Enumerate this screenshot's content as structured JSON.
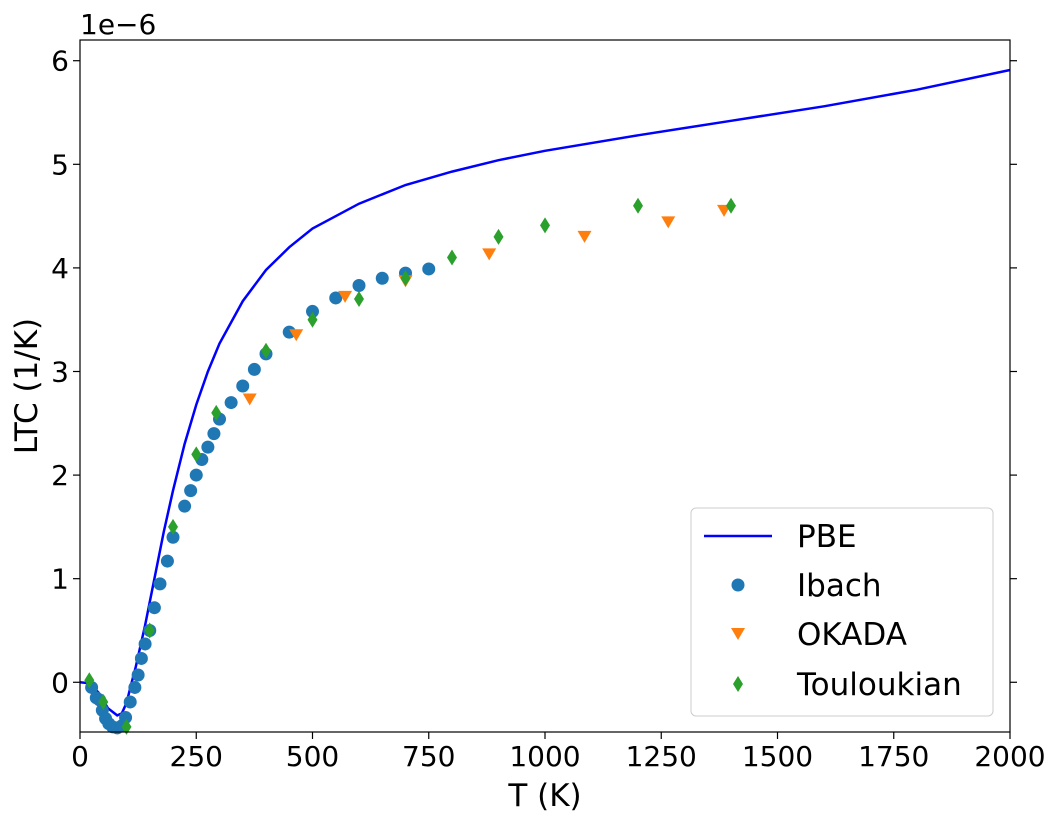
{
  "chart_data": {
    "type": "line",
    "xlabel": "T (K)",
    "ylabel": "LTC (1/K)",
    "offset_text": "1e−6",
    "xlim": [
      0,
      2000
    ],
    "ylim": [
      -0.48,
      6.2
    ],
    "xticks": [
      0,
      250,
      500,
      750,
      1000,
      1250,
      1500,
      1750,
      2000
    ],
    "yticks": [
      0,
      1,
      2,
      3,
      4,
      5,
      6
    ],
    "legend_position": "bottom-right",
    "series": [
      {
        "name": "PBE",
        "kind": "line",
        "color": "#0000ff",
        "points": [
          [
            0,
            0
          ],
          [
            20,
            -0.01
          ],
          [
            40,
            -0.1
          ],
          [
            60,
            -0.25
          ],
          [
            80,
            -0.32
          ],
          [
            90,
            -0.3
          ],
          [
            100,
            -0.2
          ],
          [
            110,
            -0.02
          ],
          [
            120,
            0.15
          ],
          [
            140,
            0.55
          ],
          [
            160,
            1.0
          ],
          [
            180,
            1.45
          ],
          [
            200,
            1.85
          ],
          [
            225,
            2.3
          ],
          [
            250,
            2.68
          ],
          [
            275,
            3.0
          ],
          [
            300,
            3.27
          ],
          [
            350,
            3.68
          ],
          [
            400,
            3.98
          ],
          [
            450,
            4.2
          ],
          [
            500,
            4.38
          ],
          [
            600,
            4.62
          ],
          [
            700,
            4.8
          ],
          [
            800,
            4.93
          ],
          [
            900,
            5.04
          ],
          [
            1000,
            5.13
          ],
          [
            1200,
            5.28
          ],
          [
            1400,
            5.42
          ],
          [
            1600,
            5.56
          ],
          [
            1800,
            5.72
          ],
          [
            2000,
            5.91
          ]
        ]
      },
      {
        "name": "Ibach",
        "kind": "scatter",
        "marker": "circle",
        "color": "#1f77b4",
        "points": [
          [
            25,
            -0.05
          ],
          [
            35,
            -0.15
          ],
          [
            42,
            -0.17
          ],
          [
            48,
            -0.27
          ],
          [
            55,
            -0.35
          ],
          [
            62,
            -0.4
          ],
          [
            70,
            -0.43
          ],
          [
            80,
            -0.44
          ],
          [
            90,
            -0.42
          ],
          [
            98,
            -0.34
          ],
          [
            108,
            -0.19
          ],
          [
            118,
            -0.05
          ],
          [
            125,
            0.07
          ],
          [
            132,
            0.23
          ],
          [
            140,
            0.37
          ],
          [
            150,
            0.5
          ],
          [
            160,
            0.72
          ],
          [
            172,
            0.95
          ],
          [
            188,
            1.17
          ],
          [
            200,
            1.4
          ],
          [
            225,
            1.7
          ],
          [
            238,
            1.85
          ],
          [
            250,
            2.0
          ],
          [
            262,
            2.15
          ],
          [
            275,
            2.27
          ],
          [
            288,
            2.4
          ],
          [
            300,
            2.54
          ],
          [
            325,
            2.7
          ],
          [
            350,
            2.86
          ],
          [
            375,
            3.02
          ],
          [
            400,
            3.17
          ],
          [
            450,
            3.38
          ],
          [
            500,
            3.58
          ],
          [
            550,
            3.71
          ],
          [
            600,
            3.83
          ],
          [
            650,
            3.9
          ],
          [
            700,
            3.95
          ],
          [
            750,
            3.99
          ]
        ]
      },
      {
        "name": "OKADA",
        "kind": "scatter",
        "marker": "triangle-down",
        "color": "#ff7f0e",
        "points": [
          [
            365,
            2.73
          ],
          [
            465,
            3.35
          ],
          [
            570,
            3.72
          ],
          [
            700,
            3.87
          ],
          [
            880,
            4.13
          ],
          [
            1085,
            4.3
          ],
          [
            1265,
            4.44
          ],
          [
            1385,
            4.55
          ]
        ]
      },
      {
        "name": "Touloukian",
        "kind": "scatter",
        "marker": "thin-diamond",
        "color": "#2ca02c",
        "points": [
          [
            20,
            0.02
          ],
          [
            50,
            -0.19
          ],
          [
            100,
            -0.43
          ],
          [
            150,
            0.5
          ],
          [
            200,
            1.5
          ],
          [
            250,
            2.2
          ],
          [
            293,
            2.6
          ],
          [
            400,
            3.2
          ],
          [
            500,
            3.5
          ],
          [
            600,
            3.7
          ],
          [
            700,
            3.9
          ],
          [
            800,
            4.1
          ],
          [
            900,
            4.3
          ],
          [
            1000,
            4.41
          ],
          [
            1200,
            4.6
          ],
          [
            1400,
            4.6
          ]
        ]
      }
    ]
  }
}
